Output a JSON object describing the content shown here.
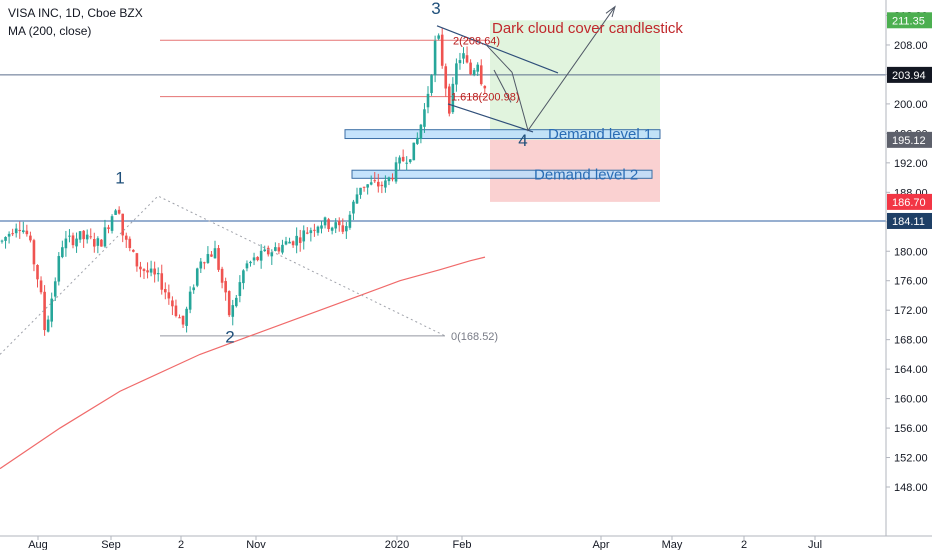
{
  "header": {
    "symbol_line": "VISA INC, 1D, Cboe BZX",
    "indicator_line": "MA (200, close)"
  },
  "colors": {
    "up": "#26a69a",
    "down": "#ef5350",
    "ma": "#f06a6a",
    "price_line": "#5b6e8c",
    "horizontal_line": "#2f5fa0",
    "zone_fill": "#bbdefb",
    "zone_border": "#3b6ea5",
    "target_fill": "#d7f0d3",
    "stop_fill": "#f9c5c5",
    "current_badge": "#131722",
    "target_badge": "#4caf50",
    "stop_badge": "#f23645",
    "level_badge": "#1e3f66",
    "demand_badge": "#5d606b"
  },
  "chart_data": {
    "type": "candlestick",
    "title": "VISA INC, 1D, Cboe BZX",
    "indicator": "MA (200, close)",
    "ylim": [
      147,
      216
    ],
    "y_ticks": [
      148,
      152,
      156,
      160,
      164,
      168,
      172,
      176,
      180,
      184,
      188,
      192,
      196,
      200,
      204,
      208,
      212
    ],
    "x_ticks": [
      "Aug",
      "Sep",
      "2",
      "Nov",
      "2020",
      "Feb",
      "Apr",
      "May",
      "2",
      "Jul"
    ],
    "price_badges": [
      {
        "label": "211.35",
        "value": 211.35,
        "kind": "target"
      },
      {
        "label": "203.94",
        "value": 203.94,
        "kind": "current"
      },
      {
        "label": "195.12",
        "value": 195.12,
        "kind": "demand"
      },
      {
        "label": "186.70",
        "value": 186.7,
        "kind": "stop"
      },
      {
        "label": "184.11",
        "value": 184.11,
        "kind": "level"
      }
    ],
    "horizontal_line": 184.11,
    "current_price": 203.94,
    "ma200": [
      [
        0,
        150.5
      ],
      [
        60,
        156
      ],
      [
        120,
        161
      ],
      [
        200,
        166
      ],
      [
        250,
        168.5
      ],
      [
        300,
        171
      ],
      [
        350,
        173.5
      ],
      [
        400,
        176
      ],
      [
        440,
        177.5
      ],
      [
        470,
        178.7
      ],
      [
        485,
        179.2
      ]
    ],
    "fib": [
      {
        "label": "2(208.64)",
        "value": 208.64,
        "x0": 160,
        "x1": 487
      },
      {
        "label": "1.618(200.98)",
        "value": 200.98,
        "x0": 160,
        "x1": 487
      },
      {
        "label": "0(168.52)",
        "value": 168.52,
        "x0": 160,
        "x1": 445
      }
    ],
    "waves": [
      {
        "label": "1",
        "x": 120,
        "value": 189.2
      },
      {
        "label": "2",
        "x": 230,
        "value": 167.6
      },
      {
        "label": "3",
        "x": 436,
        "value": 212.2
      },
      {
        "label": "4",
        "x": 523,
        "value": 194.3
      }
    ],
    "zones": [
      {
        "label": "Demand level 1",
        "x0": 345,
        "x1": 660,
        "top": 196.5,
        "bottom": 195.3
      },
      {
        "label": "Demand level 2",
        "x0": 352,
        "x1": 652,
        "top": 191.0,
        "bottom": 189.9
      }
    ],
    "target_box": {
      "x0": 490,
      "x1": 660,
      "top": 211.35,
      "bottom": 195.12
    },
    "stop_box": {
      "x0": 490,
      "x1": 660,
      "top": 195.12,
      "bottom": 186.7
    },
    "annotation": "Dark cloud cover candlestick"
  }
}
